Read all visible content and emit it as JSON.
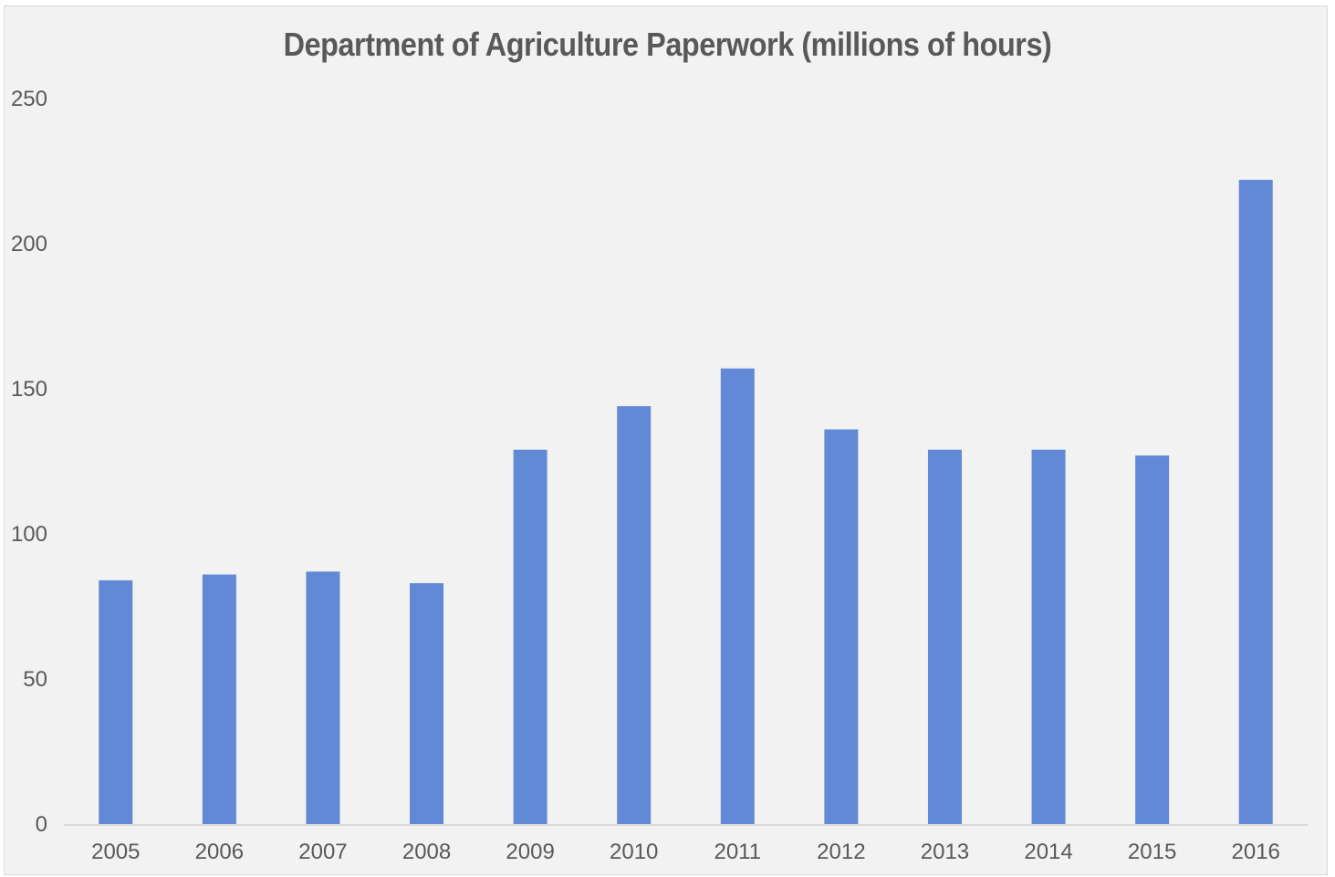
{
  "chart_data": {
    "type": "bar",
    "title": "Department of Agriculture  Paperwork  (millions  of hours)",
    "xlabel": "",
    "ylabel": "",
    "categories": [
      "2005",
      "2006",
      "2007",
      "2008",
      "2009",
      "2010",
      "2011",
      "2012",
      "2013",
      "2014",
      "2015",
      "2016"
    ],
    "values": [
      84,
      86,
      87,
      83,
      129,
      144,
      157,
      136,
      129,
      129,
      127,
      222
    ],
    "ylim": [
      0,
      250
    ],
    "yticks": [
      "0",
      "50",
      "100",
      "150",
      "200",
      "250"
    ],
    "grid": false,
    "legend": "none",
    "bar_color": "#6289d6"
  }
}
